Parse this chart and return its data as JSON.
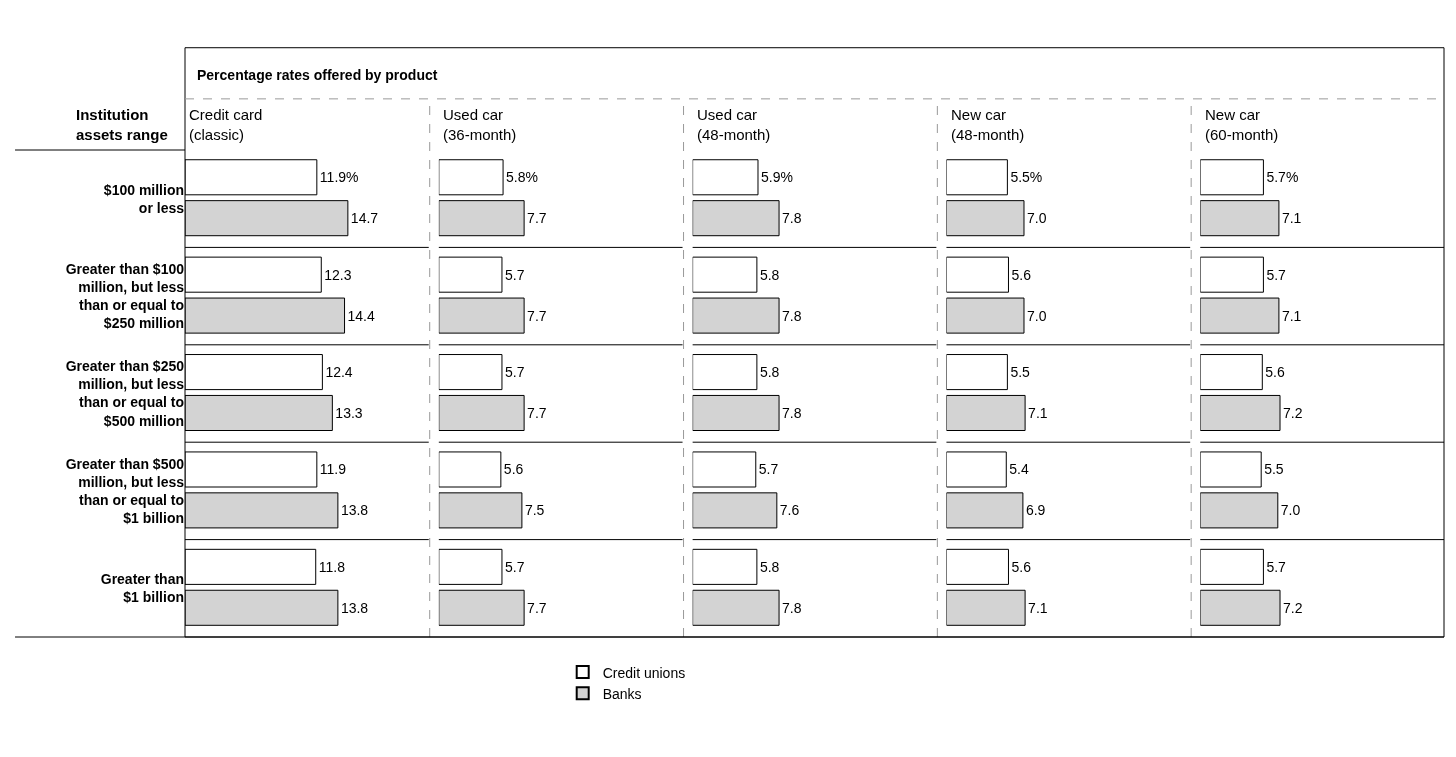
{
  "chart_data": [
    {
      "type": "bar",
      "orientation": "horizontal",
      "title": "Credit card\n(classic)",
      "ylabel": "Institution\nassets range",
      "annotations": [
        "Percentage rates offered by product"
      ],
      "legend": "bottom",
      "tick_labels": "y",
      "xlim": [
        0,
        22
      ],
      "categories": [
        "$100 million\nor less",
        "Greater than $100\nmillion, but less\nthan or equal to\n$250 million",
        "Greater than $250\nmillion, but less\nthan or equal to\n$500 million",
        "Greater than $500\nmillion, but less\nthan or equal to\n$1 billion",
        "Greater than\n$1 billion"
      ],
      "series": [
        {
          "name": "Credit unions",
          "color": "#ffffff",
          "values": [
            11.9,
            12.3,
            12.4,
            11.9,
            11.8
          ],
          "value_labels": [
            "11.9%",
            "12.3",
            "12.4",
            "11.9",
            "11.8"
          ]
        },
        {
          "name": "Banks",
          "color": "#d3d3d3",
          "values": [
            14.7,
            14.4,
            13.3,
            13.8,
            13.8
          ],
          "value_labels": [
            "14.7",
            "14.4",
            "13.3",
            "13.8",
            "13.8"
          ]
        }
      ]
    },
    {
      "type": "bar",
      "orientation": "horizontal",
      "title": "Used car\n(36-month)",
      "tick_labels": false,
      "xlim": [
        0,
        22
      ],
      "categories": [
        null,
        null,
        null,
        null,
        null
      ],
      "series": [
        {
          "color": "#ffffff",
          "values": [
            5.8,
            5.7,
            5.7,
            5.6,
            5.7
          ],
          "value_labels": [
            "5.8%",
            "5.7",
            "5.7",
            "5.6",
            "5.7"
          ]
        },
        {
          "color": "#d3d3d3",
          "values": [
            7.7,
            7.7,
            7.7,
            7.5,
            7.7
          ],
          "value_labels": [
            "7.7",
            "7.7",
            "7.7",
            "7.5",
            "7.7"
          ]
        }
      ]
    },
    {
      "type": "bar",
      "orientation": "horizontal",
      "title": "Used car\n(48-month)",
      "tick_labels": false,
      "xlim": [
        0,
        22
      ],
      "categories": [
        null,
        null,
        null,
        null,
        null
      ],
      "series": [
        {
          "color": "#ffffff",
          "values": [
            5.9,
            5.8,
            5.8,
            5.7,
            5.8
          ],
          "value_labels": [
            "5.9%",
            "5.8",
            "5.8",
            "5.7",
            "5.8"
          ]
        },
        {
          "color": "#d3d3d3",
          "values": [
            7.8,
            7.8,
            7.8,
            7.6,
            7.8
          ],
          "value_labels": [
            "7.8",
            "7.8",
            "7.8",
            "7.6",
            "7.8"
          ]
        }
      ]
    },
    {
      "type": "bar",
      "orientation": "horizontal",
      "title": "New car\n(48-month)",
      "tick_labels": false,
      "xlim": [
        0,
        22
      ],
      "categories": [
        null,
        null,
        null,
        null,
        null
      ],
      "series": [
        {
          "color": "#ffffff",
          "values": [
            5.5,
            5.6,
            5.5,
            5.4,
            5.6
          ],
          "value_labels": [
            "5.5%",
            "5.6",
            "5.5",
            "5.4",
            "5.6"
          ]
        },
        {
          "color": "#d3d3d3",
          "values": [
            7.0,
            7.0,
            7.1,
            6.9,
            7.1
          ],
          "value_labels": [
            "7.0",
            "7.0",
            "7.1",
            "6.9",
            "7.1"
          ]
        }
      ]
    },
    {
      "type": "bar",
      "orientation": "horizontal",
      "title": "New car\n(60-month)",
      "tick_labels": false,
      "xlim": [
        0,
        22
      ],
      "categories": [
        null,
        null,
        null,
        null,
        null
      ],
      "series": [
        {
          "color": "#ffffff",
          "values": [
            5.7,
            5.7,
            5.6,
            5.5,
            5.7
          ],
          "value_labels": [
            "5.7%",
            "5.7",
            "5.6",
            "5.5",
            "5.7"
          ]
        },
        {
          "color": "#d3d3d3",
          "values": [
            7.1,
            7.1,
            7.2,
            7.0,
            7.2
          ],
          "value_labels": [
            "7.1",
            "7.1",
            "7.2",
            "7.0",
            "7.2"
          ]
        }
      ]
    }
  ]
}
